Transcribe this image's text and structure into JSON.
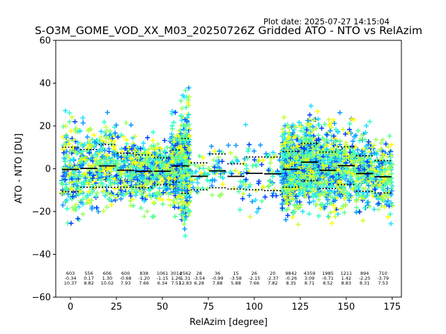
{
  "chart_data": {
    "type": "scatter",
    "title": "S-O3M_GOME_VOD_XX_M03_20250726Z Gridded ATO - NTO vs RelAzim",
    "plot_date": "Plot date: 2025-07-27 14:15:04",
    "xlabel": "RelAzim [degree]",
    "ylabel": "ATO - NTO [DU]",
    "xlim": [
      -8,
      180
    ],
    "ylim": [
      -60,
      60
    ],
    "xticks": [
      0,
      25,
      50,
      75,
      100,
      125,
      150,
      175
    ],
    "yticks": [
      -60,
      -40,
      -20,
      0,
      20,
      40,
      60
    ],
    "grid": false,
    "marker": "+",
    "colors": [
      "#ffff00",
      "#ccff33",
      "#99ff66",
      "#55ff99",
      "#33ffcc",
      "#22ddff",
      "#1199ff",
      "#0044ff"
    ],
    "bins": [
      {
        "x0": -5,
        "x1": 5,
        "count": "603",
        "mean": "-0.34",
        "std": "10.37",
        "m": -0.34,
        "s": 10.37,
        "n": 603
      },
      {
        "x0": 5,
        "x1": 15,
        "count": "556",
        "mean": "0.17",
        "std": "8.82",
        "m": 0.17,
        "s": 8.82,
        "n": 556
      },
      {
        "x0": 15,
        "x1": 25,
        "count": "606",
        "mean": "1.30",
        "std": "10.02",
        "m": 1.3,
        "s": 10.02,
        "n": 606
      },
      {
        "x0": 25,
        "x1": 35,
        "count": "600",
        "mean": "-0.68",
        "std": "7.93",
        "m": -0.68,
        "s": 7.93,
        "n": 600
      },
      {
        "x0": 35,
        "x1": 45,
        "count": "838",
        "mean": "-1.20",
        "std": "7.66",
        "m": -1.2,
        "s": 7.66,
        "n": 838
      },
      {
        "x0": 45,
        "x1": 55,
        "count": "1061",
        "mean": "-1.15",
        "std": "6.34",
        "m": -1.15,
        "s": 6.34,
        "n": 1061
      },
      {
        "x0": 55,
        "x1": 60,
        "count": "3014",
        "mean": "1.26",
        "std": "7.51",
        "m": 1.26,
        "s": 7.51,
        "n": 3014
      },
      {
        "x0": 60,
        "x1": 65,
        "count": "2562",
        "mean": "1.31",
        "std": "12.83",
        "m": 1.31,
        "s": 12.83,
        "n": 2562
      },
      {
        "x0": 65,
        "x1": 75,
        "count": "28",
        "mean": "-3.54",
        "std": "6.28",
        "m": -3.54,
        "s": 6.28,
        "n": 28
      },
      {
        "x0": 75,
        "x1": 85,
        "count": "36",
        "mean": "-0.99",
        "std": "7.88",
        "m": -0.99,
        "s": 7.88,
        "n": 36
      },
      {
        "x0": 85,
        "x1": 95,
        "count": "15",
        "mean": "-3.58",
        "std": "5.88",
        "m": -3.58,
        "s": 5.88,
        "n": 15
      },
      {
        "x0": 95,
        "x1": 105,
        "count": "26",
        "mean": "-2.15",
        "std": "7.66",
        "m": -2.15,
        "s": 7.66,
        "n": 26
      },
      {
        "x0": 105,
        "x1": 115,
        "count": "20",
        "mean": "-2.37",
        "std": "7.82",
        "m": -2.37,
        "s": 7.82,
        "n": 20
      },
      {
        "x0": 115,
        "x1": 125,
        "count": "9842",
        "mean": "-0.26",
        "std": "8.35",
        "m": -0.26,
        "s": 8.35,
        "n": 9842
      },
      {
        "x0": 125,
        "x1": 135,
        "count": "4359",
        "mean": "3.09",
        "std": "8.71",
        "m": 3.09,
        "s": 8.71,
        "n": 4359
      },
      {
        "x0": 135,
        "x1": 145,
        "count": "1985",
        "mean": "-0.71",
        "std": "8.52",
        "m": -0.71,
        "s": 8.52,
        "n": 1985
      },
      {
        "x0": 145,
        "x1": 155,
        "count": "1211",
        "mean": "1.42",
        "std": "8.83",
        "m": 1.42,
        "s": 8.83,
        "n": 1211
      },
      {
        "x0": 155,
        "x1": 165,
        "count": "894",
        "mean": "-2.25",
        "std": "8.31",
        "m": -2.25,
        "s": 8.31,
        "n": 894
      },
      {
        "x0": 165,
        "x1": 175,
        "count": "710",
        "mean": "-3.79",
        "std": "7.53",
        "m": -3.79,
        "s": 7.53,
        "n": 710
      }
    ]
  }
}
